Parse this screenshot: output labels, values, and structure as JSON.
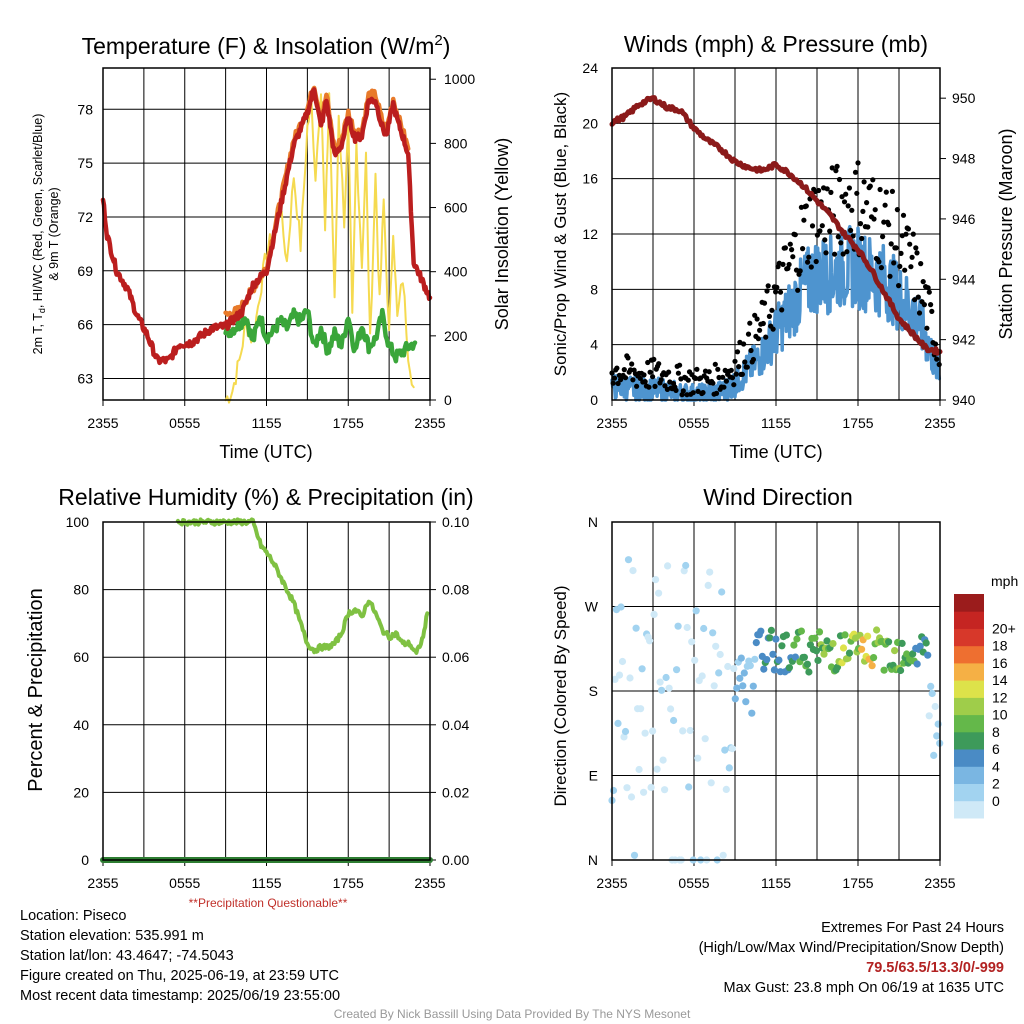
{
  "colors": {
    "temp": "#bb1e1e",
    "dew": "#3aa63a",
    "wc": "#e87a2a",
    "solar": "#f5da50",
    "wind": "#4e94cf",
    "gust": "#000000",
    "pressure": "#8b1a1a",
    "rh": "#7fc142",
    "precip": "#2e7d32"
  },
  "chart_data": [
    {
      "type": "line",
      "title": "Temperature (F) & Insolation (W/m",
      "title_sup": "2",
      "title_close": ")",
      "xlabel": "Time (UTC)",
      "ylabel_line1": "2m T, T",
      "ylabel_sub": "d",
      "ylabel_line1_rest": ", HI/WC (Red, Green, Scarlet/Blue)",
      "ylabel_line2": "& 9m T (Orange)",
      "ylabel_right": "Solar Insolation (Yellow)",
      "x_ticks": [
        "2355",
        "0555",
        "1155",
        "1755",
        "2355"
      ],
      "ylim": [
        61.8,
        80.3
      ],
      "yticks": [
        63,
        66,
        69,
        72,
        75,
        78
      ],
      "ylim_right": [
        0,
        1035
      ],
      "yticks_right": [
        0,
        200,
        400,
        600,
        800,
        1000
      ],
      "series": [
        {
          "key": "temp",
          "points": [
            [
              0,
              73
            ],
            [
              0.3,
              71
            ],
            [
              1,
              69
            ],
            [
              1.8,
              68
            ],
            [
              2.5,
              66.5
            ],
            [
              3.2,
              65.5
            ],
            [
              4,
              64
            ],
            [
              4.8,
              64
            ],
            [
              5.6,
              64.9
            ],
            [
              6.5,
              65
            ],
            [
              8,
              65.8
            ],
            [
              9,
              65.9
            ],
            [
              10.2,
              66.7
            ],
            [
              11,
              68.2
            ],
            [
              12,
              69
            ],
            [
              13,
              72.5
            ],
            [
              14,
              76
            ],
            [
              15,
              77.8
            ],
            [
              15.5,
              79.2
            ],
            [
              16,
              77
            ],
            [
              16.4,
              78.5
            ],
            [
              17,
              75.4
            ],
            [
              17.5,
              76
            ],
            [
              18,
              77.5
            ],
            [
              18.5,
              76.4
            ],
            [
              19,
              76.5
            ],
            [
              19.5,
              78.5
            ],
            [
              20,
              78.5
            ],
            [
              20.5,
              77
            ],
            [
              20.8,
              76.5
            ],
            [
              21.3,
              78.3
            ],
            [
              21.6,
              77.4
            ],
            [
              22,
              76.5
            ],
            [
              22.4,
              75.5
            ],
            [
              22.8,
              69.5
            ],
            [
              23.4,
              68.5
            ],
            [
              24,
              67.5
            ]
          ]
        },
        {
          "key": "dew",
          "points": [
            [
              9,
              65.5
            ],
            [
              10,
              66
            ],
            [
              10.5,
              66.5
            ],
            [
              11,
              65
            ],
            [
              11.5,
              66.5
            ],
            [
              12,
              65.3
            ],
            [
              12.5,
              65.6
            ],
            [
              13,
              66.2
            ],
            [
              13.5,
              65.8
            ],
            [
              14,
              66.5
            ],
            [
              14.5,
              66.2
            ],
            [
              15,
              66.8
            ],
            [
              15.5,
              64.7
            ],
            [
              16,
              65.8
            ],
            [
              16.5,
              64.5
            ],
            [
              17,
              65.5
            ],
            [
              17.5,
              64.8
            ],
            [
              18,
              66.5
            ],
            [
              18.5,
              64.5
            ],
            [
              19,
              66
            ],
            [
              19.5,
              64.8
            ],
            [
              20,
              65.2
            ],
            [
              20.5,
              66.5
            ],
            [
              21,
              64.8
            ],
            [
              21.5,
              64.2
            ],
            [
              22,
              64.5
            ],
            [
              22.5,
              64.8
            ],
            [
              22.9,
              65
            ]
          ]
        },
        {
          "key": "wc",
          "points": [
            [
              9,
              66.5
            ],
            [
              10,
              66.8
            ],
            [
              11,
              68
            ],
            [
              12,
              69.2
            ],
            [
              13,
              72.8
            ],
            [
              14,
              76.3
            ],
            [
              15,
              78
            ],
            [
              15.5,
              79.4
            ],
            [
              16,
              77.3
            ],
            [
              16.4,
              78.8
            ],
            [
              17,
              75.7
            ],
            [
              17.5,
              76.3
            ],
            [
              18,
              77.8
            ],
            [
              18.5,
              76.7
            ],
            [
              19,
              76.8
            ],
            [
              19.5,
              78.8
            ],
            [
              20,
              78.8
            ],
            [
              20.5,
              77.3
            ],
            [
              20.8,
              76.8
            ],
            [
              21.3,
              78.6
            ],
            [
              21.6,
              77.7
            ],
            [
              22,
              76.8
            ],
            [
              22.4,
              75.8
            ]
          ]
        }
      ],
      "solar": [
        [
          9,
          0
        ],
        [
          9.5,
          30
        ],
        [
          10,
          120
        ],
        [
          10.5,
          240
        ],
        [
          11,
          180
        ],
        [
          11.5,
          330
        ],
        [
          12,
          460
        ],
        [
          12.5,
          520
        ],
        [
          13,
          600
        ],
        [
          13.5,
          430
        ],
        [
          14,
          700
        ],
        [
          14.5,
          480
        ],
        [
          15,
          850
        ],
        [
          15.3,
          920
        ],
        [
          15.6,
          700
        ],
        [
          16,
          980
        ],
        [
          16.3,
          520
        ],
        [
          16.6,
          960
        ],
        [
          17,
          300
        ],
        [
          17.3,
          900
        ],
        [
          17.7,
          560
        ],
        [
          18,
          850
        ],
        [
          18.3,
          250
        ],
        [
          18.6,
          800
        ],
        [
          19,
          420
        ],
        [
          19.3,
          760
        ],
        [
          19.6,
          180
        ],
        [
          20,
          700
        ],
        [
          20.3,
          300
        ],
        [
          20.6,
          620
        ],
        [
          21,
          200
        ],
        [
          21.3,
          540
        ],
        [
          21.6,
          250
        ],
        [
          22,
          380
        ],
        [
          22.4,
          150
        ],
        [
          22.8,
          40
        ]
      ]
    },
    {
      "type": "line",
      "title": "Winds (mph) & Pressure (mb)",
      "xlabel": "Time (UTC)",
      "ylabel": "Sonic/Prop Wind & Gust (Blue, Black)",
      "ylabel_right": "Station Pressure (Maroon)",
      "x_ticks": [
        "2355",
        "0555",
        "1155",
        "1755",
        "2355"
      ],
      "ylim": [
        0,
        24
      ],
      "yticks": [
        0,
        4,
        8,
        12,
        16,
        20,
        24
      ],
      "ylim_right": [
        940,
        951
      ],
      "yticks_right": [
        940,
        942,
        944,
        946,
        948,
        950
      ],
      "pressure": [
        [
          0,
          949.2
        ],
        [
          1,
          949.4
        ],
        [
          2,
          949.8
        ],
        [
          3,
          950
        ],
        [
          4,
          949.7
        ],
        [
          5,
          949.6
        ],
        [
          6,
          949
        ],
        [
          7,
          948.6
        ],
        [
          8,
          948.3
        ],
        [
          9,
          947.9
        ],
        [
          10,
          947.7
        ],
        [
          11,
          947.6
        ],
        [
          12,
          947.8
        ],
        [
          13,
          947.5
        ],
        [
          14,
          947.1
        ],
        [
          15,
          946.6
        ],
        [
          16,
          946.1
        ],
        [
          17,
          945.5
        ],
        [
          18,
          945
        ],
        [
          19,
          944.3
        ],
        [
          20,
          943.5
        ],
        [
          21,
          942.7
        ],
        [
          22,
          942.2
        ],
        [
          23,
          941.7
        ],
        [
          24,
          941.6
        ]
      ]
    },
    {
      "type": "line",
      "title": "Relative Humidity (%) & Precipitation (in)",
      "ylabel": "Percent & Precipitation",
      "x_ticks": [
        "2355",
        "0555",
        "1155",
        "1755",
        "2355"
      ],
      "ylim": [
        0,
        100
      ],
      "yticks": [
        0,
        20,
        40,
        60,
        80,
        100
      ],
      "ylim_right": [
        0,
        0.1
      ],
      "yticks_right": [
        "0.00",
        "0.02",
        "0.04",
        "0.06",
        "0.08",
        "0.10"
      ],
      "rh": [
        [
          5.5,
          100
        ],
        [
          5.8,
          100
        ],
        [
          9,
          100
        ],
        [
          11,
          100
        ],
        [
          11.6,
          93
        ],
        [
          12,
          91
        ],
        [
          12.5,
          88
        ],
        [
          13,
          84
        ],
        [
          13.5,
          80
        ],
        [
          14,
          76
        ],
        [
          14.5,
          70
        ],
        [
          15,
          64
        ],
        [
          15.5,
          62
        ],
        [
          16,
          63
        ],
        [
          16.5,
          63
        ],
        [
          17,
          64
        ],
        [
          17.5,
          67
        ],
        [
          18,
          73
        ],
        [
          18.5,
          74
        ],
        [
          19,
          72
        ],
        [
          19.5,
          77
        ],
        [
          20,
          73
        ],
        [
          20.5,
          68
        ],
        [
          21,
          66
        ],
        [
          21.5,
          67
        ],
        [
          22,
          64
        ],
        [
          22.5,
          64
        ],
        [
          23,
          61
        ],
        [
          23.5,
          66
        ],
        [
          23.8,
          73
        ]
      ],
      "precip_total": 0.0,
      "note": "**Precipitation Questionable**"
    },
    {
      "type": "scatter",
      "title": "Wind Direction",
      "ylabel": "Direction (Colored By Speed)",
      "x_ticks": [
        "2355",
        "0555",
        "1155",
        "1755",
        "2355"
      ],
      "ylim": [
        0,
        360
      ],
      "ytick_labels": [
        "N",
        "E",
        "S",
        "W",
        "N"
      ],
      "colorbar_title": "mph",
      "colorbar_labels": [
        "0",
        "2",
        "4",
        "6",
        "8",
        "10",
        "12",
        "14",
        "16",
        "18",
        "20+"
      ],
      "colorbar_colors": [
        "#cfe9f7",
        "#a2d3f0",
        "#7ab6e2",
        "#4a8bc5",
        "#3d9a5a",
        "#64b84a",
        "#9fcd4a",
        "#dde24a",
        "#f5b045",
        "#ee6f30",
        "#d7382a",
        "#c52522",
        "#9b1c1c"
      ]
    }
  ],
  "station": {
    "location": "Location: Piseco",
    "elevation": "Station elevation: 535.991 m",
    "latlon": "Station lat/lon: 43.4647; -74.5043",
    "created": "Figure created on Thu, 2025-06-19, at 23:59 UTC",
    "recent": "Most recent data timestamp: 2025/06/19 23:55:00"
  },
  "extremes": {
    "title": "Extremes For Past 24 Hours",
    "subtitle": "(High/Low/Max Wind/Precipitation/Snow Depth)",
    "values": "79.5/63.5/13.3/0/-999",
    "gust": "Max Gust: 23.8 mph On 06/19 at 1635 UTC"
  },
  "credit": "Created By Nick Bassill Using Data Provided By The NYS Mesonet"
}
